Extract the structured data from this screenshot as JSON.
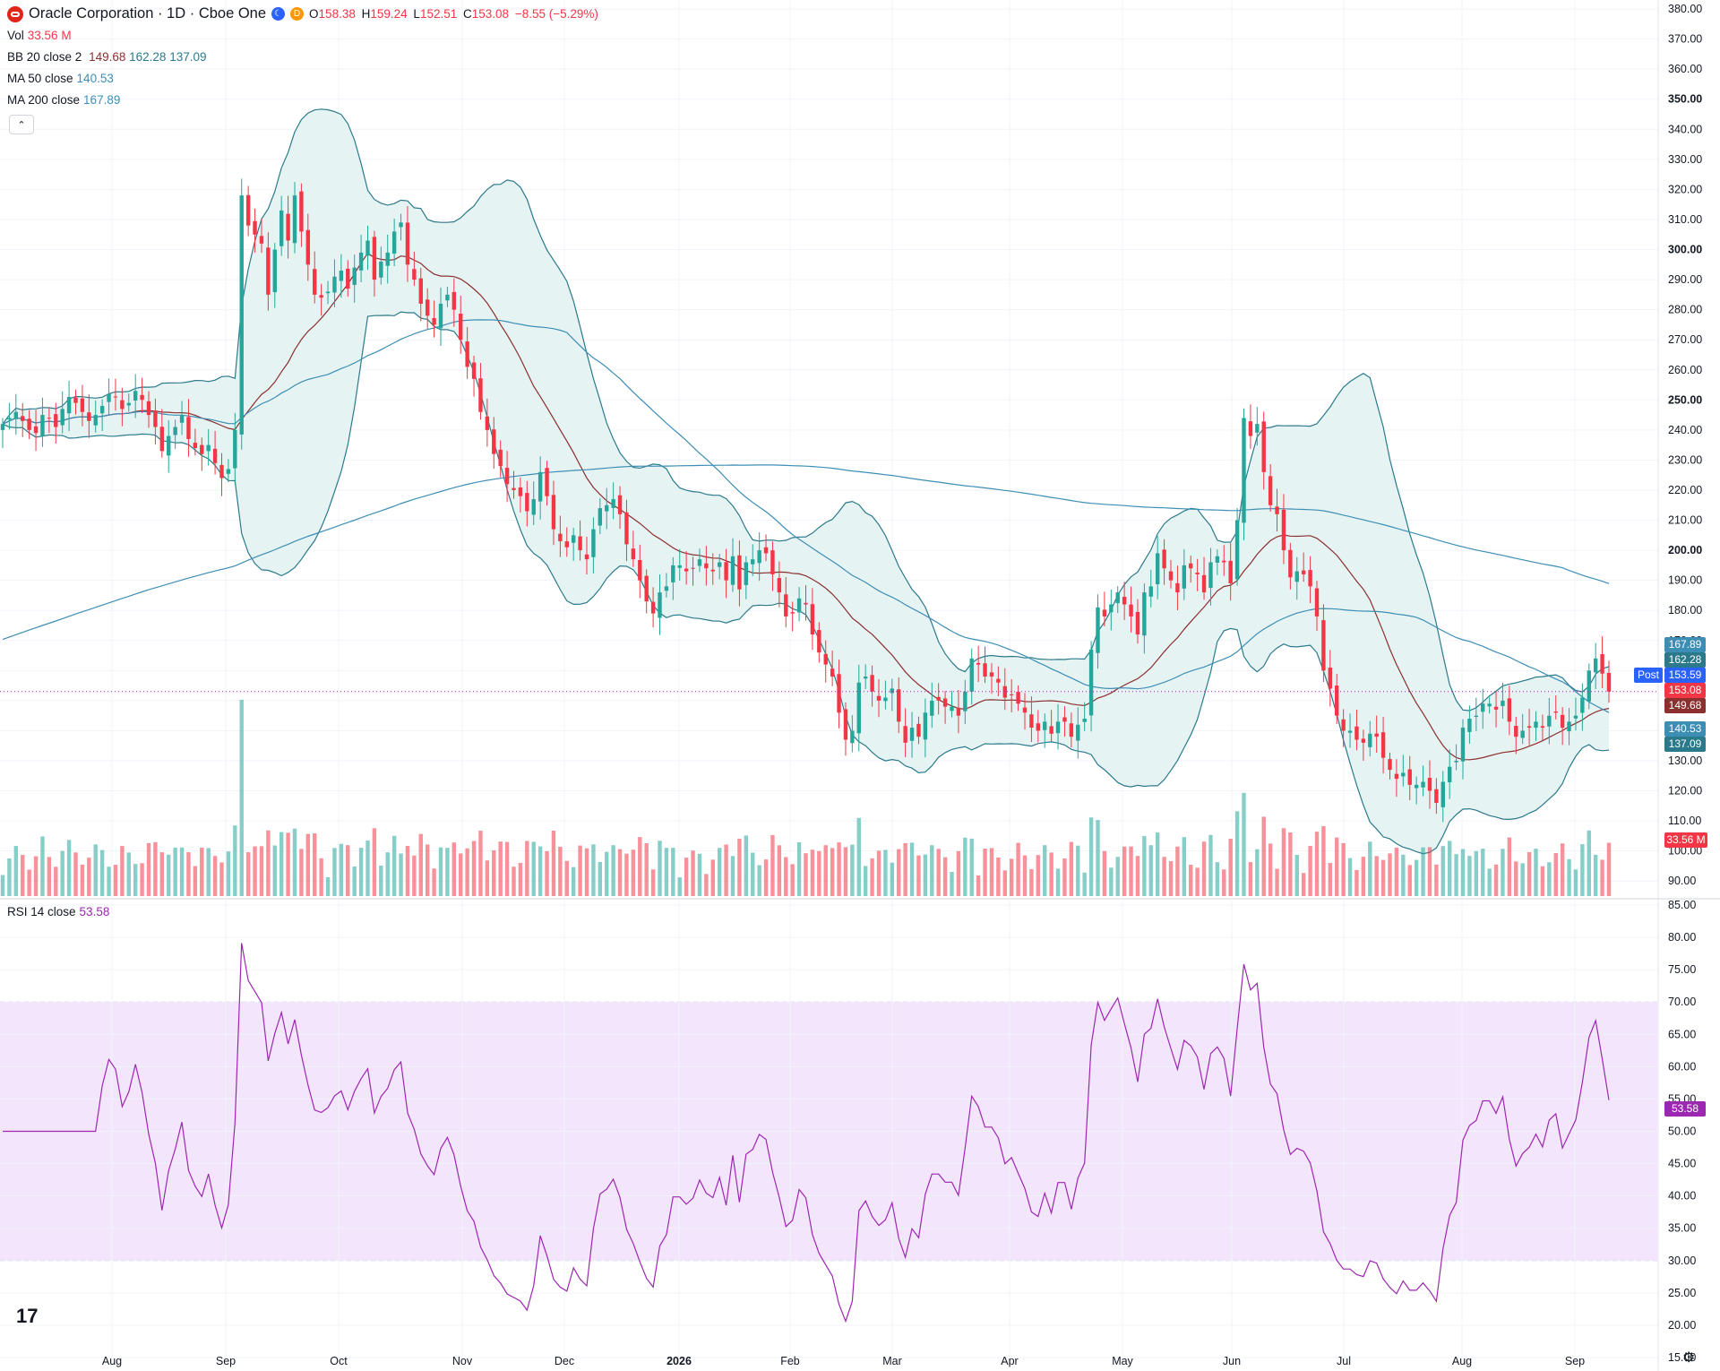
{
  "header": {
    "symbol": "Oracle Corporation · 1D · Cboe One",
    "open_label": "O",
    "open": "158.38",
    "high_label": "H",
    "high": "159.24",
    "low_label": "L",
    "low": "152.51",
    "close_label": "C",
    "close": "153.08",
    "change": "−8.55 (−5.29%)",
    "badge_1": "",
    "badge_2": "D"
  },
  "legend": {
    "vol_label": "Vol",
    "vol_value": "33.56 M",
    "bb_label": "BB 20 close 2",
    "bb_basis": "149.68",
    "bb_upper": "162.28",
    "bb_lower": "137.09",
    "ma50_label": "MA 50 close",
    "ma50_value": "140.53",
    "ma200_label": "MA 200 close",
    "ma200_value": "167.89",
    "rsi_label": "RSI 14 close",
    "rsi_value": "53.58"
  },
  "price_tags": {
    "ma200": "167.89",
    "bb_upper": "162.28",
    "post_label": "Post",
    "post": "153.59",
    "last": "153.08",
    "bb_basis": "149.68",
    "ma50": "140.53",
    "bb_lower": "137.09",
    "volume": "33.56 M",
    "rsi": "53.58"
  },
  "colors": {
    "up": "#26a69a",
    "down": "#f23645",
    "bb_line": "#2b7a8b",
    "bb_fill": "#e6f3f3",
    "bb_basis": "#8b2f2f",
    "ma": "#3d8eb5",
    "rsi_line": "#9c27b0",
    "rsi_band": "#f3e5fc"
  },
  "chart_data": {
    "type": "candlestick",
    "price_axis": {
      "range": [
        85,
        383
      ],
      "ticks": [
        "380.00",
        "370.00",
        "360.00",
        "350.00",
        "340.00",
        "330.00",
        "320.00",
        "310.00",
        "300.00",
        "290.00",
        "280.00",
        "270.00",
        "260.00",
        "250.00",
        "240.00",
        "230.00",
        "220.00",
        "210.00",
        "200.00",
        "190.00",
        "180.00",
        "170.00",
        "160.00",
        "150.00",
        "140.00",
        "130.00",
        "120.00",
        "110.00",
        "100.00",
        "90.00"
      ],
      "bold_ticks": [
        "350.00",
        "300.00",
        "250.00",
        "200.00"
      ]
    },
    "rsi_axis": {
      "range": [
        15,
        85
      ],
      "ticks": [
        "85.00",
        "80.00",
        "75.00",
        "70.00",
        "65.00",
        "60.00",
        "55.00",
        "50.00",
        "45.00",
        "40.00",
        "35.00",
        "30.00",
        "25.00",
        "20.00",
        "15.00"
      ],
      "band": [
        30,
        70
      ]
    },
    "time_axis": [
      "Aug",
      "Sep",
      "Oct",
      "Nov",
      "Dec",
      "2026",
      "Feb",
      "Mar",
      "Apr",
      "May",
      "Jun",
      "Jul",
      "Aug",
      "Sep"
    ],
    "grid": true,
    "close_series": [
      242,
      244,
      246,
      243,
      240,
      239,
      245,
      244,
      241,
      247,
      251,
      249,
      246,
      243,
      245,
      248,
      252,
      251,
      247,
      249,
      253,
      250,
      245,
      241,
      233,
      238,
      241,
      245,
      237,
      234,
      232,
      235,
      229,
      224,
      227,
      240,
      318,
      308,
      305,
      302,
      285,
      300,
      313,
      303,
      318,
      306,
      295,
      285,
      284,
      286,
      291,
      293,
      287,
      294,
      299,
      303,
      290,
      296,
      299,
      306,
      309,
      295,
      290,
      282,
      278,
      275,
      282,
      285,
      280,
      270,
      261,
      257,
      246,
      240,
      232,
      228,
      222,
      220,
      218,
      213,
      217,
      226,
      218,
      207,
      203,
      201,
      205,
      200,
      197,
      207,
      214,
      215,
      217,
      212,
      202,
      197,
      190,
      183,
      179,
      186,
      188,
      195,
      195,
      193,
      194,
      197,
      194,
      193,
      196,
      190,
      198,
      187,
      196,
      197,
      200,
      199,
      192,
      186,
      178,
      179,
      184,
      182,
      172,
      166,
      162,
      158,
      146,
      137,
      140,
      156,
      158,
      153,
      150,
      151,
      154,
      143,
      136,
      141,
      138,
      146,
      150,
      150,
      148,
      148,
      145,
      153,
      164,
      162,
      158,
      158,
      156,
      151,
      152,
      149,
      146,
      141,
      140,
      143,
      139,
      143,
      143,
      138,
      142,
      144,
      167,
      181,
      178,
      182,
      186,
      182,
      178,
      172,
      186,
      188,
      199,
      194,
      190,
      186,
      195,
      194,
      192,
      186,
      196,
      198,
      196,
      189,
      210,
      244,
      238,
      242,
      226,
      215,
      212,
      200,
      191,
      193,
      192,
      188,
      178,
      160,
      154,
      145,
      140,
      140,
      137,
      136,
      139,
      138,
      131,
      127,
      124,
      126,
      122,
      122,
      123,
      120,
      116,
      123,
      128,
      130,
      141,
      144,
      145,
      149,
      149,
      147,
      150,
      143,
      138,
      140,
      141,
      143,
      141,
      145,
      146,
      141,
      143,
      145,
      151,
      160,
      164,
      159,
      153
    ],
    "volume_note": "daily volume bars, colored by candle direction",
    "rsi_note": "RSI 14 oscillator, band 30–70"
  }
}
